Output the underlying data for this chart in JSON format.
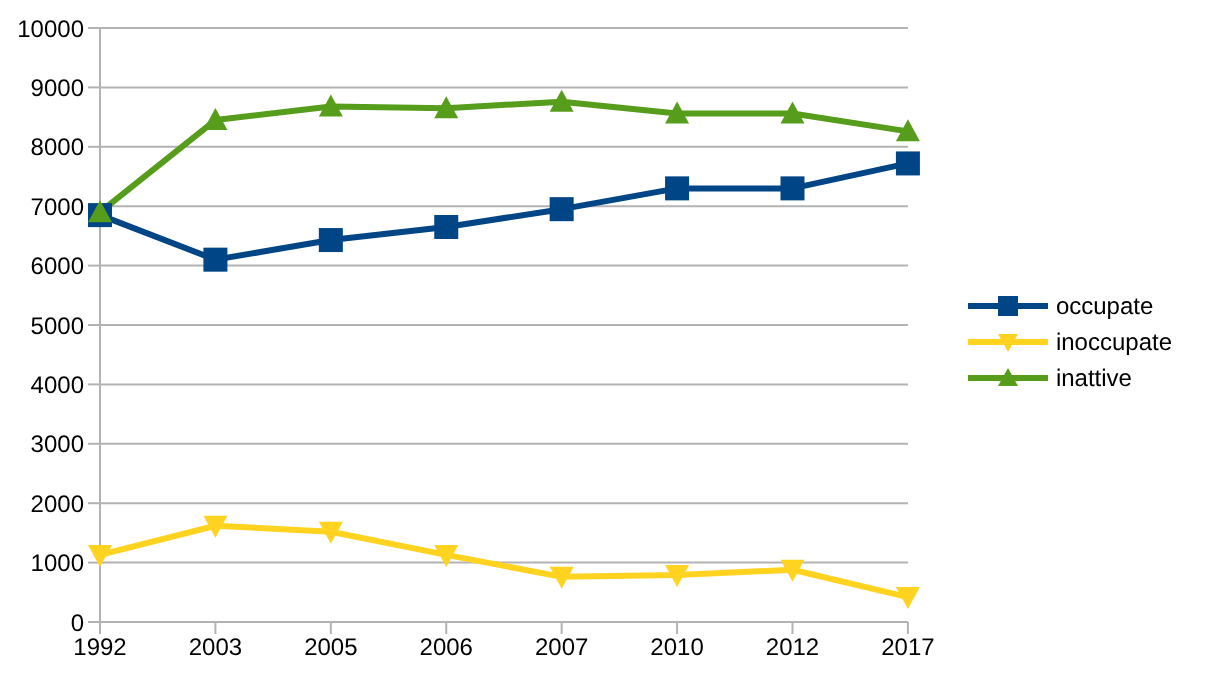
{
  "chart_data": {
    "type": "line",
    "categories": [
      "1992",
      "2003",
      "2005",
      "2006",
      "2007",
      "2010",
      "2012",
      "2017"
    ],
    "series": [
      {
        "name": "occupate",
        "color": "#004586",
        "marker": "square",
        "values": [
          6850,
          6100,
          6430,
          6650,
          6950,
          7300,
          7300,
          7720
        ]
      },
      {
        "name": "inoccupate",
        "color": "#ffd320",
        "marker": "triangle-down",
        "values": [
          1130,
          1620,
          1520,
          1130,
          760,
          790,
          880,
          420
        ]
      },
      {
        "name": "inattive",
        "color": "#579d1c",
        "marker": "triangle",
        "values": [
          6900,
          8450,
          8680,
          8650,
          8760,
          8560,
          8560,
          8260
        ]
      }
    ],
    "ylim": [
      0,
      10000
    ],
    "yticks": [
      0,
      1000,
      2000,
      3000,
      4000,
      5000,
      6000,
      7000,
      8000,
      9000,
      10000
    ],
    "grid": "y",
    "legend": "right",
    "line_style": "solid"
  }
}
